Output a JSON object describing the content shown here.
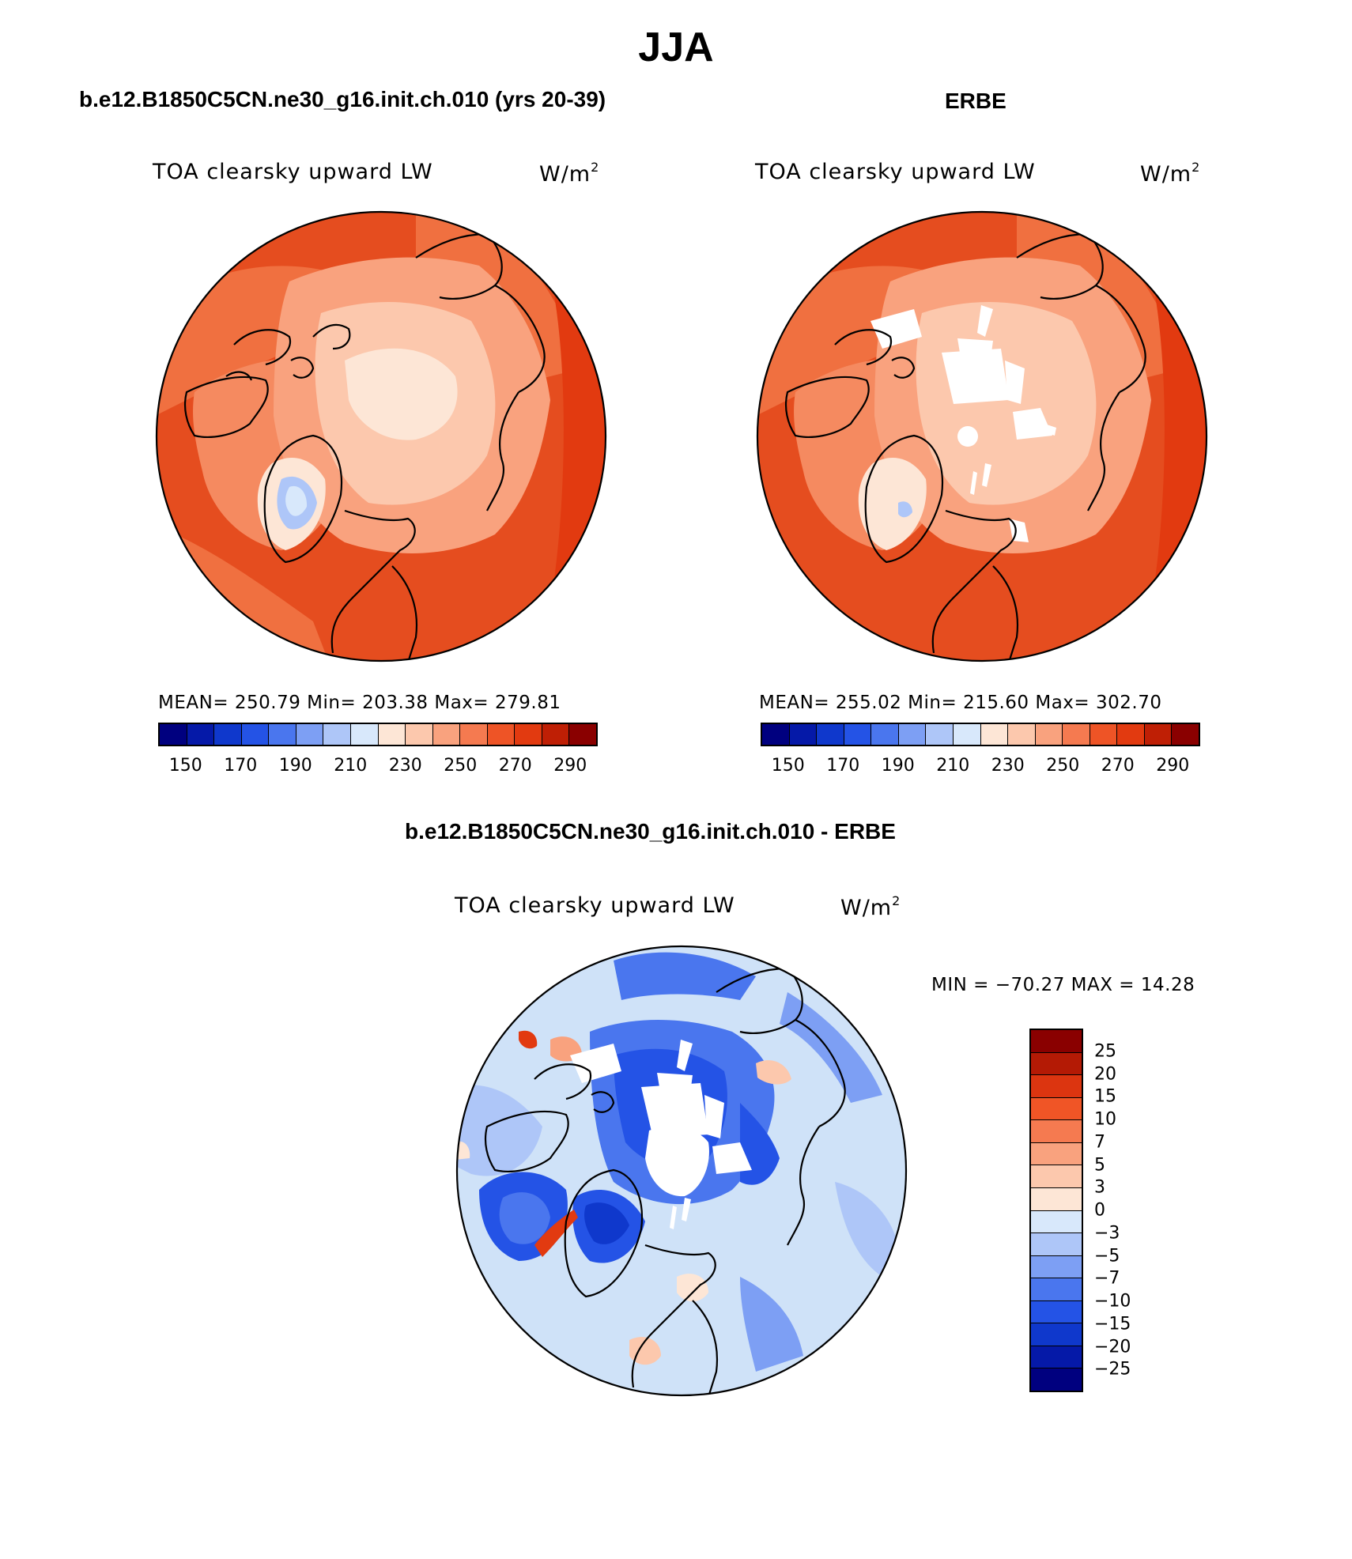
{
  "title": "JJA",
  "panels": [
    {
      "title": "b.e12.B1850C5CN.ne30_g16.init.ch.010 (yrs 20-39)",
      "variable": "TOA clearsky upward LW",
      "units_base": "W/m",
      "units_exp": "2",
      "stats": "MEAN= 250.79   Min= 203.38   Max= 279.81"
    },
    {
      "title": "ERBE",
      "variable": "TOA clearsky upward LW",
      "units_base": "W/m",
      "units_exp": "2",
      "stats": "MEAN= 255.02   Min= 215.60   Max= 302.70"
    },
    {
      "title": "b.e12.B1850C5CN.ne30_g16.init.ch.010 - ERBE",
      "variable": "TOA clearsky upward LW",
      "units_base": "W/m",
      "units_exp": "2",
      "stats": "MIN = −70.27 MAX =   14.28"
    }
  ],
  "abs_colorbar": {
    "ticks": [
      "150",
      "170",
      "190",
      "210",
      "230",
      "250",
      "270",
      "290"
    ],
    "colors": [
      "#00007f",
      "#0519a8",
      "#0f38cc",
      "#2453e6",
      "#4a76ee",
      "#7d9ff4",
      "#aec6f8",
      "#d8e8fb",
      "#fde6d6",
      "#fcc8ad",
      "#f9a27e",
      "#f57a50",
      "#ee5426",
      "#e23a10",
      "#bf1f05",
      "#8a0000"
    ]
  },
  "diff_colorbar": {
    "ticks": [
      "25",
      "20",
      "15",
      "10",
      "7",
      "5",
      "3",
      "0",
      "−3",
      "−5",
      "−7",
      "−10",
      "−15",
      "−20",
      "−25"
    ],
    "colors": [
      "#8a0000",
      "#b41a05",
      "#dc3510",
      "#f05526",
      "#f57a50",
      "#f9a27e",
      "#fcc8ad",
      "#fde6d6",
      "#d8e8fb",
      "#aec6f8",
      "#7d9ff4",
      "#4a76ee",
      "#2453e6",
      "#0f38cc",
      "#0519a8",
      "#00007f"
    ]
  },
  "map_colors": {
    "ocean_abs": "#e54d1f",
    "land_abs": "#f58a60",
    "ice_abs": "#fbd4bd",
    "greenland_abs": "#cfe0f8",
    "diff_base": "#cfe2f8",
    "diff_blue": "#3060e0"
  }
}
